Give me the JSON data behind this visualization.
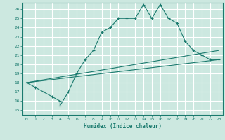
{
  "xlabel": "Humidex (Indice chaleur)",
  "ylabel": "",
  "xlim": [
    -0.5,
    23.5
  ],
  "ylim": [
    14.5,
    26.7
  ],
  "yticks": [
    15,
    16,
    17,
    18,
    19,
    20,
    21,
    22,
    23,
    24,
    25,
    26
  ],
  "xticks": [
    0,
    1,
    2,
    3,
    4,
    5,
    6,
    7,
    8,
    9,
    10,
    11,
    12,
    13,
    14,
    15,
    16,
    17,
    18,
    19,
    20,
    21,
    22,
    23
  ],
  "bg_color": "#cce8e0",
  "line_color": "#1a7a6e",
  "grid_color": "#ffffff",
  "curve1_x": [
    0,
    1,
    2,
    3,
    4,
    4,
    5,
    6,
    7,
    8,
    9,
    10,
    11,
    12,
    13,
    14,
    15,
    16,
    17,
    18,
    19,
    20,
    21,
    22,
    23
  ],
  "curve1_y": [
    18.0,
    17.5,
    17.0,
    16.5,
    16.0,
    15.5,
    17.0,
    19.0,
    20.5,
    21.5,
    23.5,
    24.0,
    25.0,
    25.0,
    25.0,
    26.5,
    25.0,
    26.5,
    25.0,
    24.5,
    22.5,
    21.5,
    21.0,
    20.5,
    20.5
  ],
  "curve2_x": [
    0,
    23
  ],
  "curve2_y": [
    18.0,
    20.5
  ],
  "curve3_x": [
    0,
    23
  ],
  "curve3_y": [
    18.0,
    21.5
  ]
}
